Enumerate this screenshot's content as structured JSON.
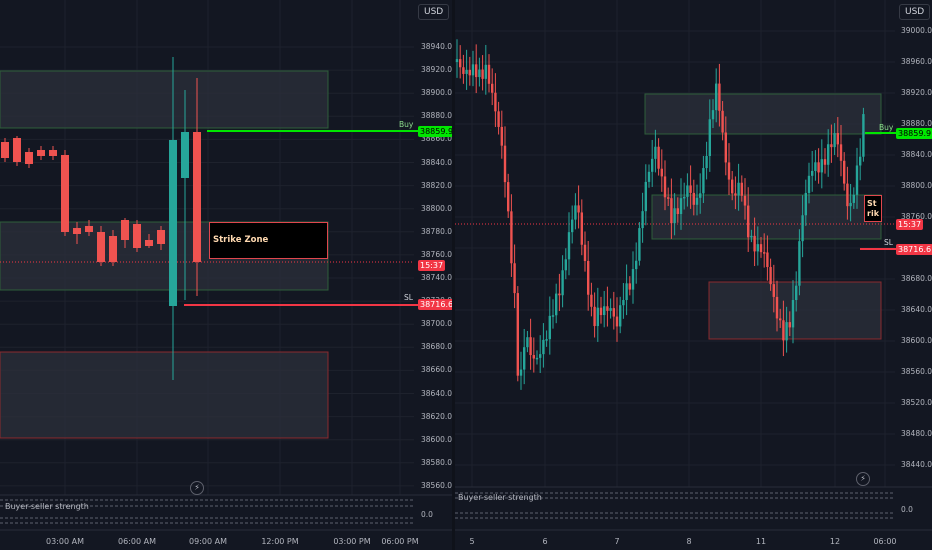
{
  "currency": "USD",
  "left_chart": {
    "y_ticks": [
      "38940.0",
      "38920.0",
      "38900.0",
      "38880.0",
      "38860.0",
      "38840.0",
      "38820.0",
      "38800.0",
      "38780.0",
      "38760.0",
      "38740.0",
      "38720.0",
      "38700.0",
      "38680.0",
      "38660.0",
      "38640.0",
      "38620.0",
      "38600.0",
      "38580.0",
      "38560.0"
    ],
    "x_ticks": [
      "03:00 AM",
      "06:00 AM",
      "09:00 AM",
      "12:00 PM",
      "03:00 PM",
      "06:00 PM"
    ],
    "buy_label": "Buy",
    "buy_price": "38859.9",
    "sl_label": "SL",
    "sl_price": "38716.6",
    "countdown": "15:37",
    "strike_zone_label": "Strike Zone",
    "indicator_label": "Buyer-seller strength",
    "indicator_value": "0.0"
  },
  "right_chart": {
    "y_ticks": [
      "39000.0",
      "38960.0",
      "38920.0",
      "38880.0",
      "38840.0",
      "38800.0",
      "38760.0",
      "38720.0",
      "38680.0",
      "38640.0",
      "38600.0",
      "38560.0",
      "38520.0",
      "38480.0",
      "38440.0"
    ],
    "x_ticks": [
      "5",
      "6",
      "7",
      "8",
      "11",
      "12",
      "06:00"
    ],
    "buy_label": "Buy",
    "buy_price": "38859.9",
    "sl_label": "SL",
    "sl_price": "38716.6",
    "countdown": "15:37",
    "strike_zone_label_line1": "St",
    "strike_zone_label_line2": "rik",
    "indicator_label": "Buyer-seller strength",
    "indicator_value": "0.0"
  },
  "colors": {
    "background": "#131722",
    "bull": "#26a69a",
    "bear": "#ef5350",
    "buy_line": "#00e600",
    "sl_line": "#f23645",
    "grid": "#1e222d"
  }
}
